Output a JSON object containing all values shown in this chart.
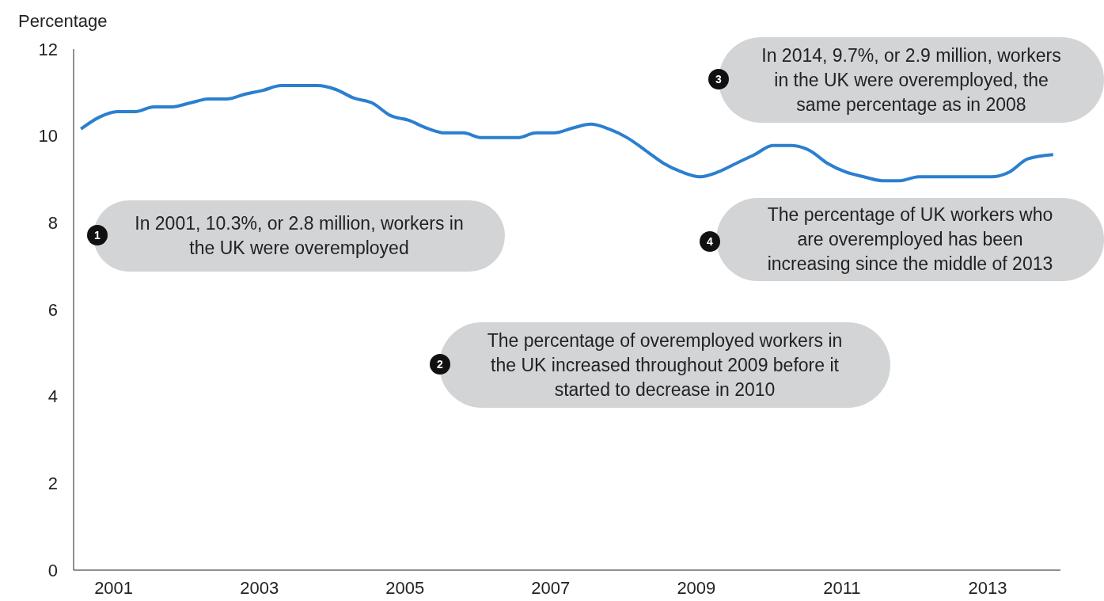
{
  "chart_data": {
    "type": "line",
    "ylabel": "Percentage",
    "x": [
      2000.55,
      2000.8,
      2001.05,
      2001.3,
      2001.55,
      2001.8,
      2002.05,
      2002.3,
      2002.55,
      2002.8,
      2003.05,
      2003.3,
      2003.55,
      2003.8,
      2004.05,
      2004.3,
      2004.55,
      2004.8,
      2005.05,
      2005.3,
      2005.55,
      2005.8,
      2006.05,
      2006.3,
      2006.55,
      2006.8,
      2007.05,
      2007.3,
      2007.55,
      2007.8,
      2008.05,
      2008.3,
      2008.55,
      2008.8,
      2009.05,
      2009.3,
      2009.55,
      2009.8,
      2010.05,
      2010.3,
      2010.55,
      2010.8,
      2011.05,
      2011.3,
      2011.55,
      2011.8,
      2012.05,
      2012.3,
      2012.55,
      2012.8,
      2013.05,
      2013.3,
      2013.55,
      2013.9
    ],
    "series": [
      {
        "color": "#2b7fcf",
        "values": [
          10.16,
          10.43,
          10.56,
          10.56,
          10.67,
          10.67,
          10.76,
          10.85,
          10.85,
          10.96,
          11.05,
          11.16,
          11.16,
          11.16,
          11.07,
          10.87,
          10.76,
          10.47,
          10.36,
          10.18,
          10.07,
          10.07,
          9.96,
          9.96,
          9.96,
          10.07,
          10.07,
          10.18,
          10.27,
          10.16,
          9.96,
          9.67,
          9.37,
          9.17,
          9.06,
          9.17,
          9.37,
          9.57,
          9.78,
          9.78,
          9.67,
          9.37,
          9.17,
          9.06,
          8.97,
          8.97,
          9.06,
          9.06,
          9.06,
          9.06,
          9.06,
          9.17,
          9.47,
          9.57
        ]
      }
    ],
    "xlim": [
      2000.45,
      2014
    ],
    "xticks": [
      2001,
      2003,
      2005,
      2007,
      2009,
      2011,
      2013
    ],
    "ylim": [
      0,
      12
    ],
    "yticks": [
      0,
      2,
      4,
      6,
      8,
      10,
      12
    ],
    "grid": false,
    "legend": false,
    "marker": "none",
    "line_style": "solid",
    "annotations": [
      "1",
      "In 2001, 10.3%, or 2.8 million, workers in the UK were overemployed",
      "2",
      "The percentage of overemployed workers in the UK increased throughout 2009 before it started to decrease in 2010",
      "3",
      "In 2014, 9.7%, or 2.9 million, workers in the UK were overemployed, the same percentage as in 2008",
      "4",
      "The percentage of UK workers who are overemployed has been increasing since the middle of 2013"
    ]
  }
}
